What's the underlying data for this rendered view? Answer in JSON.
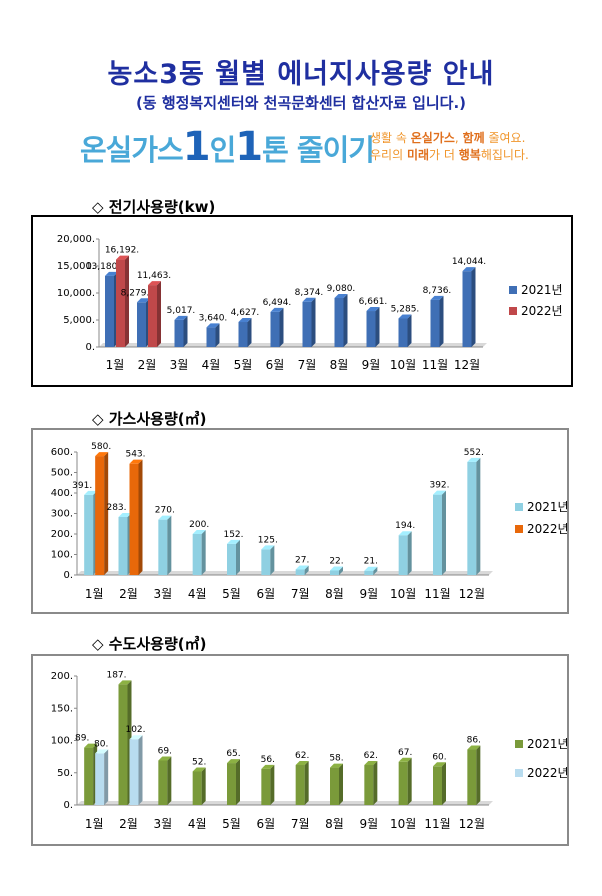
{
  "header": {
    "title": "농소3동 월별 에너지사용량 안내",
    "subtitle": "(동 행정복지센터와 천곡문화센터 합산자료 입니다.)",
    "slogan_a": "온실가스",
    "slogan_b": "1",
    "slogan_c": "인",
    "slogan_d": "1",
    "slogan_e": "톤 줄이기",
    "tagline_1a": "생활 속 ",
    "tagline_1b": "온실가스",
    "tagline_1c": ", ",
    "tagline_1d": "함께",
    "tagline_1e": " 줄여요.",
    "tagline_2a": "우리의 ",
    "tagline_2b": "미래",
    "tagline_2c": "가 더 ",
    "tagline_2d": "행복",
    "tagline_2e": "해집니다."
  },
  "sections": [
    {
      "heading": "◇ 전기사용량(kw)"
    },
    {
      "heading": "◇ 가스사용량(㎥)"
    },
    {
      "heading": "◇ 수도사용량(㎥)"
    }
  ],
  "colors": {
    "elec_2021": "#3f6fb5",
    "elec_2022": "#c0484a",
    "gas_2021": "#8fd0e2",
    "gas_2022": "#e8680a",
    "water_2021": "#7a9a3a",
    "water_2022": "#b8dcef"
  },
  "chart_data": [
    {
      "type": "bar",
      "categories": [
        "1월",
        "2월",
        "3월",
        "4월",
        "5월",
        "6월",
        "7월",
        "8월",
        "9월",
        "10월",
        "11월",
        "12월"
      ],
      "series": [
        {
          "name": "2021년",
          "values": [
            13180,
            8279,
            5017,
            3640,
            4627,
            6494,
            8374,
            9080,
            6661,
            5285,
            8736,
            14044
          ]
        },
        {
          "name": "2022년",
          "values": [
            16192,
            11463,
            null,
            null,
            null,
            null,
            null,
            null,
            null,
            null,
            null,
            null
          ]
        }
      ],
      "data_labels": [
        [
          "13,180.",
          "8,279.",
          "5,017.",
          "3,640.",
          "4,627.",
          "6,494.",
          "8,374.",
          "9,080.",
          "6,661.",
          "5,285.",
          "8,736.",
          "14,044."
        ],
        [
          "16,192.",
          "11,463."
        ]
      ],
      "yticks": [
        "0.",
        "5,000.",
        "10,000.",
        "15,000.",
        "20,000."
      ],
      "ylim": [
        0,
        20000
      ],
      "legend": "right",
      "grid": false
    },
    {
      "type": "bar",
      "categories": [
        "1월",
        "2월",
        "3월",
        "4월",
        "5월",
        "6월",
        "7월",
        "8월",
        "9월",
        "10월",
        "11월",
        "12월"
      ],
      "series": [
        {
          "name": "2021년",
          "values": [
            391,
            283,
            270,
            200,
            152,
            125,
            27,
            22,
            21,
            194,
            392,
            552
          ]
        },
        {
          "name": "2022년",
          "values": [
            580,
            543,
            null,
            null,
            null,
            null,
            null,
            null,
            null,
            null,
            null,
            null
          ]
        }
      ],
      "data_labels": [
        [
          "391.",
          "283.",
          "270.",
          "200.",
          "152.",
          "125.",
          "27.",
          "22.",
          "21.",
          "194.",
          "392.",
          "552."
        ],
        [
          "580.",
          "543."
        ]
      ],
      "yticks": [
        "0.",
        "100.",
        "200.",
        "300.",
        "400.",
        "500.",
        "600."
      ],
      "ylim": [
        0,
        600
      ],
      "legend": "right",
      "grid": false
    },
    {
      "type": "bar",
      "categories": [
        "1월",
        "2월",
        "3월",
        "4월",
        "5월",
        "6월",
        "7월",
        "8월",
        "9월",
        "10월",
        "11월",
        "12월"
      ],
      "series": [
        {
          "name": "2021년",
          "values": [
            89,
            187,
            69,
            52,
            65,
            56,
            62,
            58,
            62,
            67,
            60,
            86
          ]
        },
        {
          "name": "2022년",
          "values": [
            80,
            102,
            null,
            null,
            null,
            null,
            null,
            null,
            null,
            null,
            null,
            null
          ]
        }
      ],
      "data_labels": [
        [
          "89.",
          "187.",
          "69.",
          "52.",
          "65.",
          "56.",
          "62.",
          "58.",
          "62.",
          "67.",
          "60.",
          "86."
        ],
        [
          "80.",
          "102."
        ]
      ],
      "yticks": [
        "0.",
        "50.",
        "100.",
        "150.",
        "200."
      ],
      "ylim": [
        0,
        200
      ],
      "legend": "right",
      "grid": false
    }
  ]
}
